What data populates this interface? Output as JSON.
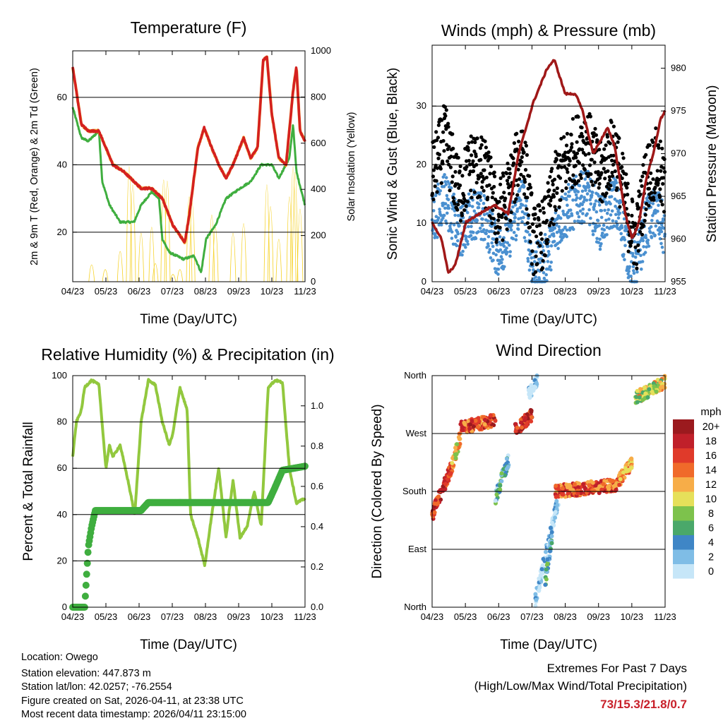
{
  "colors": {
    "temp": "#d42020",
    "dewpoint": "#3fae3f",
    "solar": "#f5d020",
    "wind": "#4a90d0",
    "gust": "#000000",
    "pressure": "#a01818",
    "rh": "#92c83e",
    "precip": "#3fae3f",
    "extremes": "#c8202a"
  },
  "chart_data": [
    {
      "type": "line",
      "title": "Temperature (F)",
      "xlabel": "Time (Day/UTC)",
      "ylabel": "2m & 9m T (Red, Orange) & 2m Td (Green)",
      "y2label": "Solar Insolation (Yellow)",
      "xticks": [
        "04/23",
        "05/23",
        "06/23",
        "07/23",
        "08/23",
        "09/23",
        "10/23",
        "11/23"
      ],
      "yticks": [
        20,
        40,
        60
      ],
      "y2ticks": [
        0,
        200,
        400,
        600,
        800,
        1000
      ],
      "ylim": [
        5.3,
        73.8
      ],
      "y2lim": [
        0,
        1000
      ],
      "grid": true,
      "series": [
        {
          "name": "2m T",
          "axis": "left",
          "x": [
            0,
            0.26,
            0.47,
            0.79,
            1.0,
            1.21,
            1.53,
            1.85,
            2.06,
            2.38,
            2.7,
            3.02,
            3.38,
            3.51,
            3.77,
            3.96,
            4.19,
            4.4,
            4.62,
            4.83,
            5.15,
            5.36,
            5.57,
            5.74,
            5.85,
            6.0,
            6.21,
            6.43,
            6.64,
            6.74,
            6.85,
            7.0
          ],
          "y": [
            69,
            52,
            50,
            50,
            45,
            40,
            38,
            35,
            33,
            33,
            30,
            22,
            17,
            25,
            45,
            51,
            45,
            40,
            36,
            40,
            48,
            42,
            45,
            71,
            72,
            55,
            42,
            40,
            62,
            69,
            50,
            47
          ]
        },
        {
          "name": "2m Td",
          "axis": "left",
          "x": [
            0,
            0.26,
            0.47,
            0.79,
            0.89,
            1.11,
            1.43,
            1.85,
            2.06,
            2.38,
            2.6,
            2.7,
            2.91,
            3.34,
            3.66,
            3.87,
            4.02,
            4.3,
            4.62,
            5.04,
            5.36,
            5.68,
            6.0,
            6.21,
            6.53,
            6.64,
            6.74,
            7.0
          ],
          "y": [
            57,
            48,
            47,
            50,
            35,
            28,
            23,
            23,
            28,
            32,
            30,
            18,
            14,
            12,
            13,
            8,
            18,
            22,
            30,
            33,
            35,
            40,
            40,
            36,
            42,
            52,
            38,
            28
          ]
        },
        {
          "name": "Solar Insolation",
          "axis": "right",
          "peaks_x": [
            0.57,
            0.98,
            1.43,
            1.7,
            1.81,
            2.06,
            2.38,
            2.49,
            2.74,
            2.85,
            3.02,
            3.23,
            3.51,
            3.6,
            4.19,
            4.3,
            4.83,
            5.15,
            5.85,
            5.96,
            6.21,
            6.53,
            6.64,
            6.7,
            6.85
          ],
          "peaks_y": [
            140,
            100,
            250,
            950,
            800,
            400,
            450,
            150,
            840,
            830,
            60,
            100,
            700,
            650,
            550,
            450,
            400,
            480,
            800,
            620,
            350,
            700,
            950,
            900,
            600
          ]
        }
      ]
    },
    {
      "type": "scatter",
      "title": "Winds (mph) & Pressure (mb)",
      "xlabel": "Time (Day/UTC)",
      "ylabel": "Sonic Wind & Gust (Blue, Black)",
      "y2label": "Station Pressure (Maroon)",
      "xticks": [
        "04/23",
        "05/23",
        "06/23",
        "07/23",
        "08/23",
        "09/23",
        "10/23",
        "11/23"
      ],
      "yticks": [
        0,
        10,
        20,
        30
      ],
      "y2ticks": [
        955,
        960,
        965,
        970,
        975,
        980
      ],
      "ylim": [
        0,
        40.4
      ],
      "y2lim": [
        955,
        982.7
      ],
      "grid": true,
      "series": [
        {
          "name": "Sonic Wind",
          "x": [
            0,
            0.38,
            0.81,
            1.23,
            1.66,
            1.97,
            2.29,
            2.72,
            3.04,
            3.36,
            3.78,
            4.2,
            4.63,
            5.05,
            5.48,
            5.9,
            6.12,
            6.43,
            6.75,
            7.0
          ],
          "y": [
            10,
            15,
            8,
            12,
            10,
            5,
            8,
            14,
            2,
            3,
            10,
            13,
            15,
            10,
            14,
            5,
            2,
            10,
            12,
            8
          ]
        },
        {
          "name": "Gust",
          "gust_factor": 1.6,
          "gust_offset": 3
        },
        {
          "name": "Station Pressure",
          "x": [
            0,
            0.28,
            0.49,
            0.7,
            1.02,
            1.44,
            1.87,
            2.29,
            2.6,
            3.04,
            3.46,
            3.67,
            4.0,
            4.31,
            4.52,
            4.84,
            5.27,
            5.48,
            5.8,
            6.01,
            6.22,
            6.43,
            6.65,
            6.86,
            7.0
          ],
          "y": [
            962,
            960,
            956,
            957,
            962,
            963,
            964,
            963,
            970,
            976,
            980,
            981,
            977,
            977,
            975,
            970,
            973,
            971,
            963,
            960,
            962,
            967,
            970,
            974,
            975
          ]
        }
      ]
    },
    {
      "type": "line",
      "title": "Relative Humidity (%) & Precipitation (in)",
      "xlabel": "Time (Day/UTC)",
      "ylabel": "Percent & Total Rainfall",
      "xticks": [
        "04/23",
        "05/23",
        "06/23",
        "07/23",
        "08/23",
        "09/23",
        "10/23",
        "11/23"
      ],
      "yticks": [
        0,
        20,
        40,
        60,
        80,
        100
      ],
      "y2ticks": [
        "0.0",
        "0.2",
        "0.4",
        "0.6",
        "0.8",
        "1.0"
      ],
      "ylim": [
        0,
        100
      ],
      "y2lim": [
        0,
        1.15
      ],
      "grid": true,
      "series": [
        {
          "name": "Relative Humidity",
          "axis": "left",
          "x": [
            0,
            0.11,
            0.26,
            0.36,
            0.57,
            0.79,
            1.0,
            1.11,
            1.21,
            1.43,
            1.66,
            1.87,
            2.06,
            2.28,
            2.49,
            2.7,
            2.91,
            3.02,
            3.23,
            3.45,
            3.55,
            3.77,
            3.98,
            4.19,
            4.4,
            4.62,
            4.83,
            5.04,
            5.26,
            5.47,
            5.68,
            5.89,
            6.11,
            6.32,
            6.53,
            6.74,
            7.0
          ],
          "y": [
            65,
            80,
            85,
            95,
            98,
            96,
            60,
            70,
            65,
            70,
            55,
            40,
            80,
            98,
            96,
            80,
            70,
            75,
            95,
            85,
            40,
            30,
            18,
            40,
            60,
            30,
            55,
            30,
            35,
            50,
            35,
            95,
            98,
            97,
            60,
            45,
            47
          ]
        },
        {
          "name": "Total Rainfall",
          "axis": "right",
          "x": [
            0,
            0.36,
            0.47,
            0.57,
            0.68,
            2.06,
            2.28,
            5.89,
            6.11,
            6.32,
            7.0
          ],
          "y": [
            0,
            0,
            0.3,
            0.4,
            0.48,
            0.48,
            0.52,
            0.52,
            0.6,
            0.68,
            0.7
          ]
        }
      ]
    },
    {
      "type": "scatter",
      "title": "Wind Direction",
      "xlabel": "Time (Day/UTC)",
      "ylabel": "Direction (Colored By Speed)",
      "xticks": [
        "04/23",
        "05/23",
        "06/23",
        "07/23",
        "08/23",
        "09/23",
        "10/23",
        "11/23"
      ],
      "yticks": [
        "North",
        "East",
        "South",
        "West",
        "North"
      ],
      "ylim": [
        0,
        360
      ],
      "grid": true,
      "tracks": [
        {
          "x": [
            0,
            0.6
          ],
          "dir": [
            143,
            220
          ],
          "speed": 17
        },
        {
          "x": [
            0.6,
            0.85
          ],
          "dir": [
            220,
            265
          ],
          "speed": 11
        },
        {
          "x": [
            0.85,
            1.9
          ],
          "dir": [
            280,
            290
          ],
          "speed": 16
        },
        {
          "x": [
            1.9,
            2.3
          ],
          "dir": [
            170,
            230
          ],
          "speed": 4
        },
        {
          "x": [
            2.5,
            3.0
          ],
          "dir": [
            275,
            300
          ],
          "speed": 18
        },
        {
          "x": [
            2.9,
            3.15
          ],
          "dir": [
            330,
            355
          ],
          "speed": 1
        },
        {
          "x": [
            3.1,
            3.8
          ],
          "dir": [
            10,
            170
          ],
          "speed": 1
        },
        {
          "x": [
            3.4,
            3.6
          ],
          "dir": [
            40,
            110
          ],
          "speed": 4
        },
        {
          "x": [
            3.7,
            5.6
          ],
          "dir": [
            180,
            190
          ],
          "speed": 15
        },
        {
          "x": [
            5.6,
            6.0
          ],
          "dir": [
            195,
            225
          ],
          "speed": 12
        },
        {
          "x": [
            6.1,
            7.0
          ],
          "dir": [
            325,
            350
          ],
          "speed": 10
        }
      ],
      "legend": {
        "title": "mph",
        "labels": [
          "20+",
          "18",
          "16",
          "14",
          "12",
          "10",
          "8",
          "6",
          "4",
          "2",
          "0"
        ],
        "colors": [
          "#9b1a1e",
          "#c0202a",
          "#e03a2a",
          "#f06a2a",
          "#f7ad48",
          "#e6e05a",
          "#7dc24c",
          "#4aa86a",
          "#3f86c6",
          "#7fbde6",
          "#c6e6f8"
        ],
        "placement": "right"
      }
    }
  ],
  "info": {
    "location": "Location: Owego",
    "elevation": "Station elevation: 447.873 m",
    "latlon": "Station lat/lon: 42.0257; -76.2554",
    "created": "Figure created on Sat, 2026-04-11, at 23:38 UTC",
    "recent": "Most recent data timestamp: 2026/04/11 23:15:00"
  },
  "extremes": {
    "title": "Extremes For Past 7 Days",
    "subtitle": "(High/Low/Max Wind/Total Precipitation)",
    "values": "73/15.3/21.8/0.7"
  }
}
